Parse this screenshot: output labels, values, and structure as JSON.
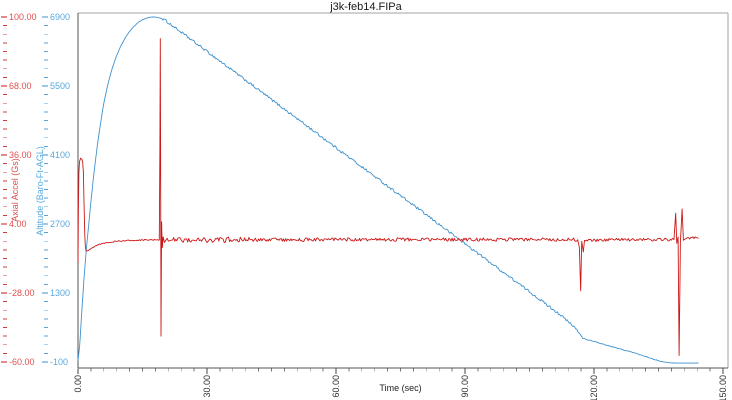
{
  "page": {
    "background_color": "#ffffff"
  },
  "chart_data": {
    "type": "line",
    "title": "j3k-feb14.FIPa",
    "xlabel": "Time (sec)",
    "grid": false,
    "legend": "none",
    "x_axis": {
      "min": 0,
      "max": 150,
      "major_ticks": [
        0,
        30,
        60,
        90,
        120,
        150
      ],
      "labels": [
        "0.00",
        "30.00",
        "60.00",
        "90.00",
        "120.00",
        "150.00"
      ],
      "minor_step": 3,
      "tick_color": "#444444",
      "label_color": "#333333"
    },
    "y_axis_accel": {
      "label": "Axial Accel (Gs)",
      "color": "#cc1717",
      "text_color": "#e05050",
      "ticks": [
        100,
        68,
        36,
        4,
        -28,
        -60
      ],
      "labels": [
        "100.00",
        "68.00",
        "36.00",
        "4.00",
        "-28.00",
        "-60.00"
      ],
      "minor_divisions": 8
    },
    "y_axis_altitude": {
      "label": "Altitude (Baro-Ft-AGL)",
      "color": "#3e92cf",
      "text_color": "#58a9dd",
      "ticks": [
        6900,
        5500,
        4100,
        2700,
        1300,
        -100
      ],
      "labels": [
        "6900",
        "5500",
        "4100",
        "2700",
        "1300",
        "-100"
      ],
      "minor_divisions": 8
    },
    "series": [
      {
        "name": "Altitude (Baro-Ft-AGL)",
        "axis": "altitude",
        "color": "#3e92cf",
        "keypoints": [
          [
            0,
            -70
          ],
          [
            0.4,
            250
          ],
          [
            0.9,
            950
          ],
          [
            1.4,
            1600
          ],
          [
            2,
            2250
          ],
          [
            2.5,
            2700
          ],
          [
            3,
            3150
          ],
          [
            3.5,
            3560
          ],
          [
            4,
            3950
          ],
          [
            4.5,
            4290
          ],
          [
            5,
            4600
          ],
          [
            5.5,
            4890
          ],
          [
            6,
            5150
          ],
          [
            6.5,
            5360
          ],
          [
            7,
            5550
          ],
          [
            7.5,
            5720
          ],
          [
            8,
            5870
          ],
          [
            9,
            6120
          ],
          [
            10,
            6320
          ],
          [
            11,
            6480
          ],
          [
            12,
            6610
          ],
          [
            13,
            6710
          ],
          [
            14,
            6790
          ],
          [
            15,
            6845
          ],
          [
            16,
            6880
          ],
          [
            17,
            6898
          ],
          [
            17.8,
            6900
          ],
          [
            18.6,
            6890
          ],
          [
            19.5,
            6868
          ],
          [
            20,
            6850
          ],
          [
            24,
            6590
          ],
          [
            28,
            6330
          ],
          [
            32,
            6070
          ],
          [
            36,
            5810
          ],
          [
            40,
            5550
          ],
          [
            44,
            5290
          ],
          [
            48,
            5030
          ],
          [
            52,
            4770
          ],
          [
            56,
            4510
          ],
          [
            60,
            4250
          ],
          [
            64,
            3990
          ],
          [
            68,
            3730
          ],
          [
            72,
            3470
          ],
          [
            76,
            3210
          ],
          [
            80,
            2950
          ],
          [
            84,
            2690
          ],
          [
            88,
            2430
          ],
          [
            92,
            2170
          ],
          [
            96,
            1910
          ],
          [
            100,
            1650
          ],
          [
            104,
            1390
          ],
          [
            108,
            1130
          ],
          [
            112,
            870
          ],
          [
            116,
            560
          ],
          [
            117.4,
            380
          ],
          [
            120,
            315
          ],
          [
            123,
            240
          ],
          [
            126,
            165
          ],
          [
            129,
            95
          ],
          [
            131,
            40
          ],
          [
            133,
            -15
          ],
          [
            134.5,
            -60
          ],
          [
            136,
            -95
          ],
          [
            137.5,
            -115
          ],
          [
            139,
            -122
          ],
          [
            141,
            -123
          ],
          [
            144.3,
            -121
          ]
        ],
        "noise_segments": [
          {
            "t0": 19.5,
            "t1": 117,
            "amp": 26
          },
          {
            "t0": 117.5,
            "t1": 136,
            "amp": 7
          }
        ]
      },
      {
        "name": "Axial Accel (Gs)",
        "axis": "accel",
        "color": "#cc1717",
        "keypoints": [
          [
            0,
            -14
          ],
          [
            0.1,
            12
          ],
          [
            0.2,
            28
          ],
          [
            0.35,
            33
          ],
          [
            0.6,
            34.5
          ],
          [
            0.9,
            34
          ],
          [
            1.1,
            32.5
          ],
          [
            1.25,
            28
          ],
          [
            1.4,
            14
          ],
          [
            1.55,
            0
          ],
          [
            1.7,
            -6.5
          ],
          [
            1.9,
            -8.6
          ],
          [
            2.2,
            -8.4
          ],
          [
            2.6,
            -7.8
          ],
          [
            3.2,
            -7
          ],
          [
            4,
            -6.2
          ],
          [
            5,
            -5.4
          ],
          [
            6,
            -4.9
          ],
          [
            7,
            -4.5
          ],
          [
            8.5,
            -4.1
          ],
          [
            10,
            -3.8
          ],
          [
            12,
            -3.6
          ],
          [
            14,
            -3.5
          ],
          [
            16,
            -3.4
          ],
          [
            18.9,
            -3.4
          ],
          [
            19.05,
            40
          ],
          [
            19.15,
            90
          ],
          [
            19.3,
            -48
          ],
          [
            19.45,
            5
          ],
          [
            19.6,
            -7
          ],
          [
            19.8,
            -2
          ],
          [
            20.1,
            -4.5
          ],
          [
            20.5,
            -3.3
          ],
          [
            25,
            -3.4
          ],
          [
            35,
            -3.3
          ],
          [
            50,
            -3.3
          ],
          [
            70,
            -3.2
          ],
          [
            90,
            -3.2
          ],
          [
            110,
            -3.2
          ],
          [
            116.2,
            -3.3
          ],
          [
            116.6,
            -7
          ],
          [
            116.9,
            -27
          ],
          [
            117.15,
            -4
          ],
          [
            117.5,
            -9
          ],
          [
            117.8,
            -3.6
          ],
          [
            125,
            -3.3
          ],
          [
            132,
            -3.2
          ],
          [
            138.6,
            -3.2
          ],
          [
            139.0,
            9
          ],
          [
            139.25,
            -5
          ],
          [
            139.55,
            -2
          ],
          [
            139.8,
            -57
          ],
          [
            140.1,
            -4
          ],
          [
            140.5,
            11
          ],
          [
            140.8,
            -3.5
          ],
          [
            141.5,
            -2.6
          ],
          [
            143,
            -2.4
          ],
          [
            144.3,
            -2.5
          ]
        ],
        "noise_segments": [
          {
            "t0": 2.2,
            "t1": 18.8,
            "amp": 0.25
          },
          {
            "t0": 20.5,
            "t1": 40,
            "amp": 1.3
          },
          {
            "t0": 40,
            "t1": 116.2,
            "amp": 0.8
          },
          {
            "t0": 117.8,
            "t1": 138.6,
            "amp": 0.7
          },
          {
            "t0": 141.5,
            "t1": 144.3,
            "amp": 0.5
          }
        ]
      }
    ]
  }
}
